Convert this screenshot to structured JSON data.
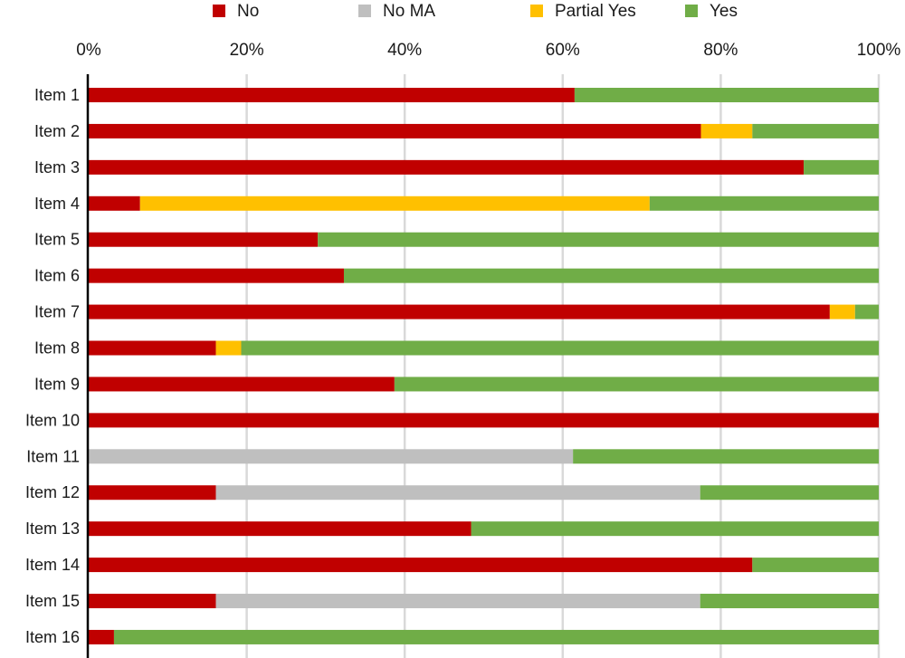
{
  "chart_data": {
    "type": "bar",
    "orientation": "horizontal",
    "stacked": "percent",
    "categories": [
      "Item 1",
      "Item 2",
      "Item 3",
      "Item 4",
      "Item 5",
      "Item 6",
      "Item 7",
      "Item 8",
      "Item 9",
      "Item 10",
      "Item 11",
      "Item 12",
      "Item 13",
      "Item 14",
      "Item 15",
      "Item 16"
    ],
    "series": [
      {
        "name": "No",
        "color": "#c00000",
        "values": [
          61.5,
          77.5,
          90.5,
          6.5,
          29.0,
          32.3,
          93.8,
          16.1,
          38.7,
          100.0,
          0.0,
          16.1,
          48.4,
          84.0,
          16.1,
          3.2
        ]
      },
      {
        "name": "No MA",
        "color": "#bfbfbf",
        "values": [
          0.0,
          0.0,
          0.0,
          0.0,
          0.0,
          0.0,
          0.0,
          0.0,
          0.0,
          0.0,
          61.3,
          61.3,
          0.0,
          0.0,
          61.3,
          0.0
        ]
      },
      {
        "name": "Partial Yes",
        "color": "#ffc000",
        "values": [
          0.0,
          6.5,
          0.0,
          64.5,
          0.0,
          0.0,
          3.2,
          3.2,
          0.0,
          0.0,
          0.0,
          0.0,
          0.0,
          0.0,
          0.0,
          0.0
        ]
      },
      {
        "name": "Yes",
        "color": "#70ad47",
        "values": [
          38.5,
          16.0,
          9.5,
          29.0,
          71.0,
          67.7,
          3.0,
          80.7,
          61.3,
          0.0,
          38.7,
          22.6,
          51.6,
          16.0,
          22.6,
          96.8
        ]
      }
    ],
    "x_ticks": [
      "0%",
      "20%",
      "40%",
      "60%",
      "80%",
      "100%"
    ],
    "xlim": [
      0,
      100
    ],
    "x_axis_position": "top",
    "grid": "vertical",
    "legend_position": "top",
    "title": "",
    "xlabel": "",
    "ylabel": ""
  }
}
